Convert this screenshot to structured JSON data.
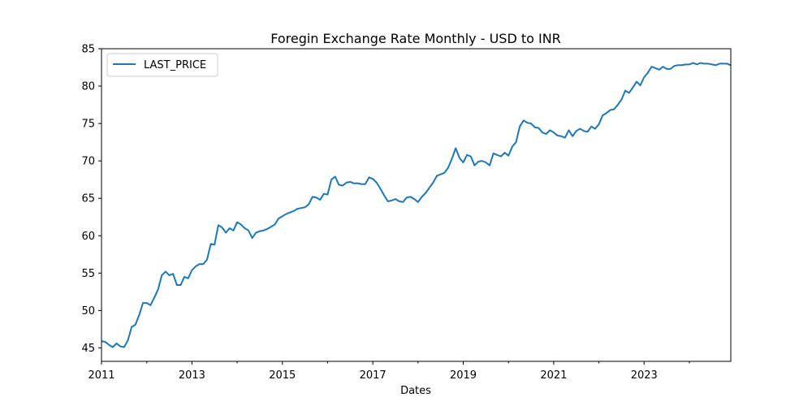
{
  "chart_data": {
    "type": "line",
    "title": "Foregin Exchange Rate Monthly - USD to INR",
    "xlabel": "Dates",
    "ylabel": "",
    "xlim": [
      "2011-01",
      "2024-12"
    ],
    "ylim": [
      43.2,
      85
    ],
    "x_ticks": [
      "2011",
      "2013",
      "2015",
      "2017",
      "2019",
      "2021",
      "2023"
    ],
    "y_ticks": [
      45,
      50,
      55,
      60,
      65,
      70,
      75,
      80,
      85
    ],
    "grid": false,
    "legend": {
      "position": "top-left",
      "entries": [
        "LAST_PRICE"
      ]
    },
    "series_color": "#1f77b4",
    "series": [
      {
        "name": "LAST_PRICE",
        "x": [
          "2011-01",
          "2011-02",
          "2011-03",
          "2011-04",
          "2011-05",
          "2011-06",
          "2011-07",
          "2011-08",
          "2011-09",
          "2011-10",
          "2011-11",
          "2011-12",
          "2012-01",
          "2012-02",
          "2012-03",
          "2012-04",
          "2012-05",
          "2012-06",
          "2012-07",
          "2012-08",
          "2012-09",
          "2012-10",
          "2012-11",
          "2012-12",
          "2013-01",
          "2013-02",
          "2013-03",
          "2013-04",
          "2013-05",
          "2013-06",
          "2013-07",
          "2013-08",
          "2013-09",
          "2013-10",
          "2013-11",
          "2013-12",
          "2014-01",
          "2014-02",
          "2014-03",
          "2014-04",
          "2014-05",
          "2014-06",
          "2014-07",
          "2014-08",
          "2014-09",
          "2014-10",
          "2014-11",
          "2014-12",
          "2015-01",
          "2015-02",
          "2015-03",
          "2015-04",
          "2015-05",
          "2015-06",
          "2015-07",
          "2015-08",
          "2015-09",
          "2015-10",
          "2015-11",
          "2015-12",
          "2016-01",
          "2016-02",
          "2016-03",
          "2016-04",
          "2016-05",
          "2016-06",
          "2016-07",
          "2016-08",
          "2016-09",
          "2016-10",
          "2016-11",
          "2016-12",
          "2017-01",
          "2017-02",
          "2017-03",
          "2017-04",
          "2017-05",
          "2017-06",
          "2017-07",
          "2017-08",
          "2017-09",
          "2017-10",
          "2017-11",
          "2017-12",
          "2018-01",
          "2018-02",
          "2018-03",
          "2018-04",
          "2018-05",
          "2018-06",
          "2018-07",
          "2018-08",
          "2018-09",
          "2018-10",
          "2018-11",
          "2018-12",
          "2019-01",
          "2019-02",
          "2019-03",
          "2019-04",
          "2019-05",
          "2019-06",
          "2019-07",
          "2019-08",
          "2019-09",
          "2019-10",
          "2019-11",
          "2019-12",
          "2020-01",
          "2020-02",
          "2020-03",
          "2020-04",
          "2020-05",
          "2020-06",
          "2020-07",
          "2020-08",
          "2020-09",
          "2020-10",
          "2020-11",
          "2020-12",
          "2021-01",
          "2021-02",
          "2021-03",
          "2021-04",
          "2021-05",
          "2021-06",
          "2021-07",
          "2021-08",
          "2021-09",
          "2021-10",
          "2021-11",
          "2021-12",
          "2022-01",
          "2022-02",
          "2022-03",
          "2022-04",
          "2022-05",
          "2022-06",
          "2022-07",
          "2022-08",
          "2022-09",
          "2022-10",
          "2022-11",
          "2022-12",
          "2023-01",
          "2023-02",
          "2023-03",
          "2023-04",
          "2023-05",
          "2023-06",
          "2023-07",
          "2023-08",
          "2023-09",
          "2023-10",
          "2023-11",
          "2023-12",
          "2024-01",
          "2024-02",
          "2024-03",
          "2024-04",
          "2024-05",
          "2024-06",
          "2024-07",
          "2024-08",
          "2024-09",
          "2024-10",
          "2024-11",
          "2024-12"
        ],
        "values": [
          45.9,
          45.8,
          45.4,
          45.1,
          45.6,
          45.2,
          45.1,
          46.0,
          47.8,
          48.1,
          49.4,
          51.0,
          51.0,
          50.7,
          51.7,
          52.8,
          54.7,
          55.2,
          54.7,
          54.9,
          53.4,
          53.4,
          54.5,
          54.3,
          55.4,
          55.9,
          56.2,
          56.2,
          56.8,
          58.9,
          58.8,
          61.4,
          61.1,
          60.4,
          61.0,
          60.7,
          61.8,
          61.5,
          61.0,
          60.7,
          59.7,
          60.4,
          60.6,
          60.7,
          60.9,
          61.2,
          61.5,
          62.3,
          62.6,
          62.9,
          63.1,
          63.3,
          63.6,
          63.7,
          63.8,
          64.2,
          65.2,
          65.1,
          64.8,
          65.6,
          65.5,
          67.5,
          67.9,
          66.8,
          66.7,
          67.1,
          67.2,
          67.0,
          67.0,
          66.9,
          66.9,
          67.8,
          67.6,
          67.1,
          66.3,
          65.4,
          64.6,
          64.7,
          64.9,
          64.6,
          64.5,
          65.1,
          65.2,
          64.9,
          64.5,
          65.2,
          65.7,
          66.4,
          67.1,
          68.0,
          68.2,
          68.4,
          69.1,
          70.3,
          71.7,
          70.4,
          69.8,
          70.8,
          70.6,
          69.4,
          69.9,
          70.0,
          69.8,
          69.4,
          71.0,
          70.8,
          70.6,
          71.1,
          70.7,
          71.9,
          72.5,
          74.6,
          75.4,
          75.1,
          75.0,
          74.5,
          74.4,
          73.8,
          73.6,
          74.1,
          73.8,
          73.4,
          73.3,
          73.1,
          74.1,
          73.3,
          74.0,
          74.3,
          74.0,
          73.9,
          74.6,
          74.3,
          74.9,
          76.1,
          76.4,
          76.8,
          76.9,
          77.5,
          78.2,
          79.4,
          79.1,
          79.8,
          80.6,
          80.1,
          81.2,
          81.8,
          82.6,
          82.4,
          82.2,
          82.6,
          82.3,
          82.3,
          82.7,
          82.8,
          82.8,
          82.9,
          82.9,
          83.1,
          82.9,
          83.1,
          83.0,
          83.0,
          82.9,
          82.8,
          83.0,
          83.0,
          83.0,
          82.8
        ]
      }
    ]
  }
}
